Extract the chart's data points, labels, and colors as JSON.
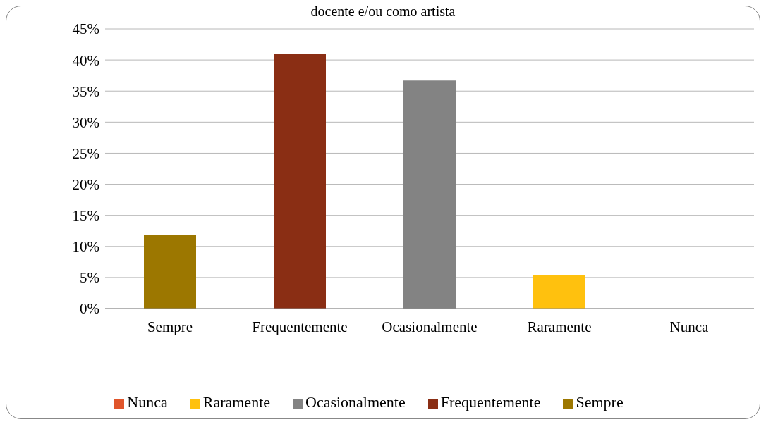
{
  "chart_data": {
    "type": "bar",
    "title": "docente e/ou como artista",
    "categories": [
      "Sempre",
      "Frequentemente",
      "Ocasionalmente",
      "Raramente",
      "Nunca"
    ],
    "stacked": true,
    "series": [
      {
        "name": "Nunca",
        "color": "#e0552b",
        "values": [
          null,
          null,
          null,
          null,
          0
        ]
      },
      {
        "name": "Raramente",
        "color": "#ffc10e",
        "values": [
          null,
          null,
          null,
          5.4,
          null
        ]
      },
      {
        "name": "Ocasionalmente",
        "color": "#838383",
        "values": [
          null,
          null,
          36.7,
          null,
          null
        ]
      },
      {
        "name": "Frequentemente",
        "color": "#8a2e14",
        "values": [
          null,
          41.0,
          null,
          null,
          null
        ]
      },
      {
        "name": "Sempre",
        "color": "#9c7700",
        "values": [
          11.8,
          null,
          null,
          null,
          null
        ]
      }
    ],
    "ylim": [
      0,
      45
    ],
    "yticks": [
      {
        "value": 0,
        "label": "0%"
      },
      {
        "value": 5,
        "label": "5%"
      },
      {
        "value": 10,
        "label": "10%"
      },
      {
        "value": 15,
        "label": "15%"
      },
      {
        "value": 20,
        "label": "20%"
      },
      {
        "value": 25,
        "label": "25%"
      },
      {
        "value": 30,
        "label": "30%"
      },
      {
        "value": 35,
        "label": "35%"
      },
      {
        "value": 40,
        "label": "40%"
      },
      {
        "value": 45,
        "label": "45%"
      }
    ],
    "grid": "y",
    "legend": "bottom"
  }
}
